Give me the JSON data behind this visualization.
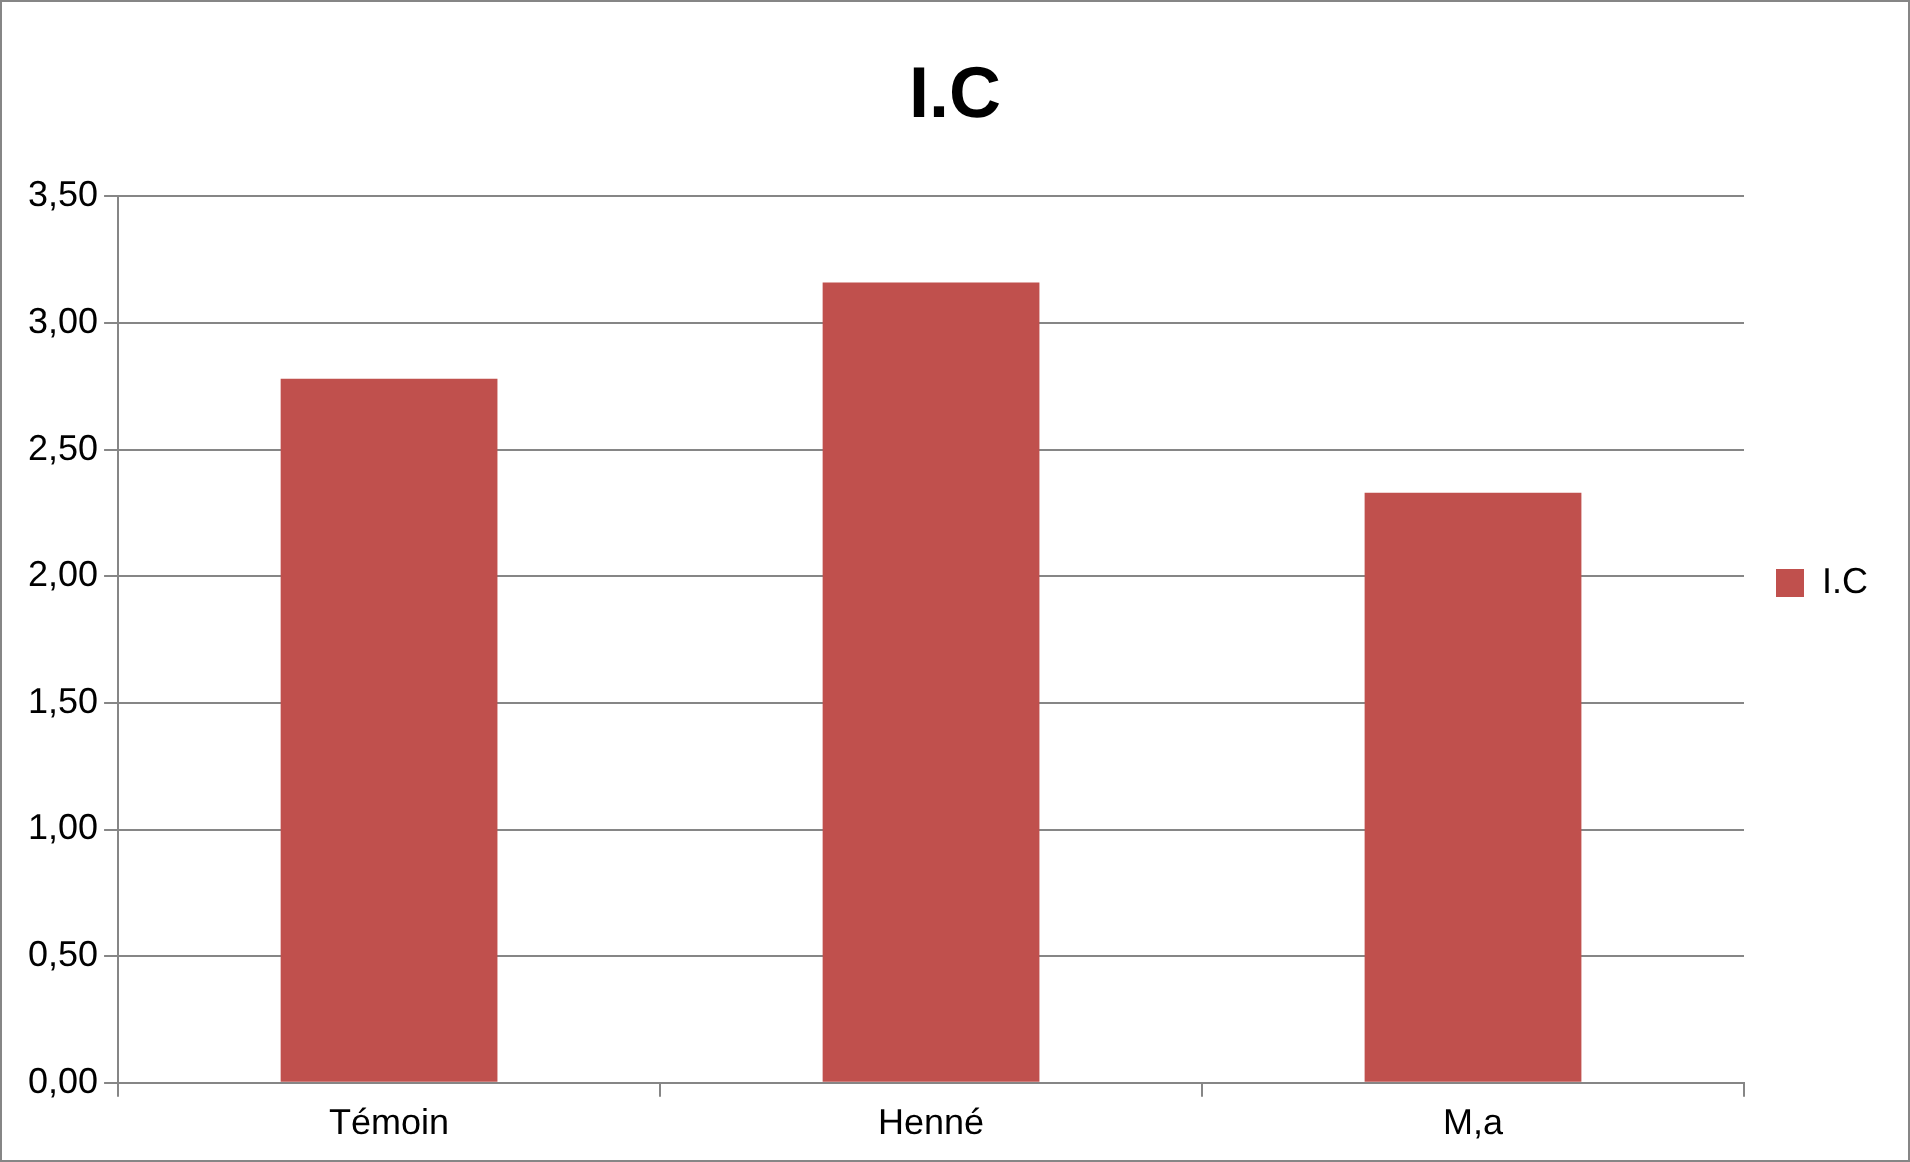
{
  "chart_data": {
    "type": "bar",
    "title": "I.C",
    "categories": [
      "Témoin",
      "Henné",
      "M,a"
    ],
    "series": [
      {
        "name": "I.C",
        "color": "#c0504d",
        "values": [
          2.78,
          3.16,
          2.33
        ]
      }
    ],
    "ylim": [
      0,
      3.5
    ],
    "yticks": [
      {
        "value": 0,
        "label": "0,00"
      },
      {
        "value": 0.5,
        "label": "0,50"
      },
      {
        "value": 1,
        "label": "1,00"
      },
      {
        "value": 1.5,
        "label": "1,50"
      },
      {
        "value": 2,
        "label": "2,00"
      },
      {
        "value": 2.5,
        "label": "2,50"
      },
      {
        "value": 3,
        "label": "3,00"
      },
      {
        "value": 3.5,
        "label": "3,50"
      }
    ],
    "grid": "y",
    "legend": "right"
  }
}
